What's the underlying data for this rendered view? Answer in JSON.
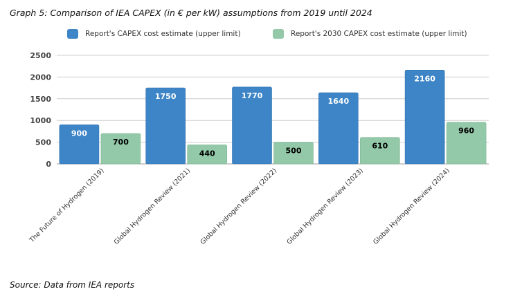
{
  "title": "Graph 5: Comparison of IEA CAPEX (in € per kW) assumptions from 2019 until 2024",
  "source": "Source: Data from IEA reports",
  "colors": {
    "series1": "#3d85c6",
    "series2": "#93c9a9",
    "grid": "#cccccc",
    "label_on_blue": "#ffffff",
    "label_on_green": "#000000"
  },
  "chart_data": {
    "type": "bar",
    "categories": [
      "The Future of Hydrogen (2019)",
      "Global Hydrogen Review (2021)",
      "Global Hydrogen Review (2022)",
      "Global Hydrogen Review (2023)",
      "Global Hydrogen Review (2024)"
    ],
    "series": [
      {
        "name": "Report's CAPEX cost estimate (upper limit)",
        "values": [
          900,
          1750,
          1770,
          1640,
          2160
        ]
      },
      {
        "name": "Report's 2030 CAPEX cost estimate (upper limit)",
        "values": [
          700,
          440,
          500,
          610,
          960
        ]
      }
    ],
    "ylim": [
      0,
      2500
    ],
    "yticks": [
      "0",
      "500",
      "1000",
      "1500",
      "2000",
      "2500"
    ],
    "ytick_values": [
      0,
      500,
      1000,
      1500,
      2000,
      2500
    ],
    "grid": true,
    "legend_position": "top",
    "data_labels": true
  }
}
